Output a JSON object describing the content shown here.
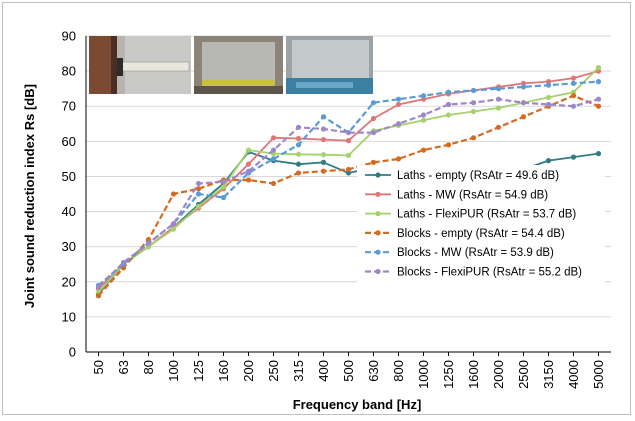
{
  "chart_data": {
    "type": "line",
    "xlabel": "Frequency band [Hz]",
    "ylabel": "Joint sound reduction index Rs [dB]",
    "ylim": [
      0,
      90
    ],
    "yticks": [
      "0",
      "10",
      "20",
      "30",
      "40",
      "50",
      "60",
      "70",
      "80",
      "90"
    ],
    "grid": true,
    "legend_position": "bottom-right",
    "categories": [
      "50",
      "63",
      "80",
      "100",
      "125",
      "160",
      "200",
      "250",
      "315",
      "400",
      "500",
      "630",
      "800",
      "1000",
      "1250",
      "1600",
      "2000",
      "2500",
      "3150",
      "4000",
      "5000"
    ],
    "series": [
      {
        "name": "Laths - empty (RsAtr = 49.6 dB)",
        "color": "#2e7d85",
        "dashed": false,
        "values": [
          16.5,
          25.0,
          30.0,
          35.5,
          42.0,
          48.0,
          57.0,
          54.5,
          53.5,
          54.0,
          51.0,
          52.5,
          52.0,
          46.0,
          47.5,
          49.5,
          49.5,
          52.0,
          54.5,
          55.5,
          56.5
        ]
      },
      {
        "name": "Laths - MW (RsAtr = 54.9 dB)",
        "color": "#e07575",
        "dashed": false,
        "values": [
          18.0,
          25.0,
          30.0,
          35.5,
          41.0,
          46.5,
          53.5,
          61.0,
          60.8,
          60.5,
          60.2,
          66.5,
          70.5,
          72.0,
          73.5,
          74.5,
          75.5,
          76.5,
          77.0,
          78.0,
          80.0
        ]
      },
      {
        "name": "Laths - FlexiPUR (RsAtr = 53.7 dB)",
        "color": "#a6d26a",
        "dashed": false,
        "values": [
          17.0,
          25.0,
          30.0,
          35.0,
          41.5,
          47.0,
          57.5,
          56.5,
          56.3,
          56.2,
          56.0,
          63.0,
          64.5,
          66.0,
          67.5,
          68.5,
          69.5,
          71.0,
          72.5,
          74.0,
          81.0
        ]
      },
      {
        "name": "Blocks - empty (RsAtr = 54.4 dB)",
        "color": "#d66a1e",
        "dashed": true,
        "values": [
          16.0,
          24.0,
          32.0,
          45.0,
          46.5,
          49.0,
          49.0,
          48.0,
          51.0,
          51.5,
          52.0,
          54.0,
          55.0,
          57.5,
          59.0,
          61.0,
          64.0,
          67.0,
          70.0,
          73.0,
          70.0
        ]
      },
      {
        "name": "Blocks - MW (RsAtr = 53.9 dB)",
        "color": "#5b9bd5",
        "dashed": true,
        "values": [
          19.0,
          25.0,
          31.0,
          36.5,
          45.0,
          44.0,
          51.0,
          55.0,
          59.0,
          67.0,
          62.5,
          71.0,
          72.0,
          73.0,
          74.0,
          74.5,
          75.0,
          75.5,
          76.0,
          76.5,
          77.0
        ]
      },
      {
        "name": "Blocks - FlexiPUR (RsAtr = 55.2 dB)",
        "color": "#9f86c8",
        "dashed": true,
        "values": [
          18.5,
          25.5,
          31.0,
          36.5,
          48.0,
          48.5,
          51.5,
          57.5,
          64.0,
          63.5,
          62.5,
          62.5,
          65.0,
          67.5,
          70.5,
          71.0,
          72.0,
          71.0,
          70.5,
          70.0,
          72.0
        ]
      }
    ]
  }
}
